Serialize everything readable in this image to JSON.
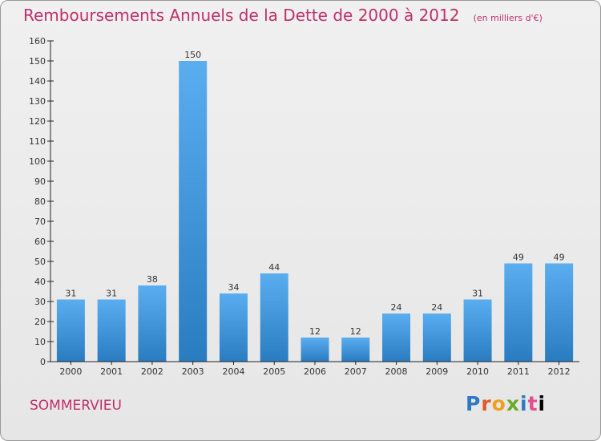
{
  "header": {
    "title": "Remboursements Annuels de la Dette de 2000 à 2012",
    "unit": "(en milliers d'€)"
  },
  "footer": {
    "commune": "SOMMERVIEU",
    "logo_letters": [
      "P",
      "r",
      "o",
      "x",
      "i",
      "t",
      "i"
    ]
  },
  "colors": {
    "bar_light": "#5aaef0",
    "bar_dark": "#2a7cc0",
    "title": "#c0306a",
    "axis": "#222222"
  },
  "chart_data": {
    "type": "bar",
    "title": "Remboursements Annuels de la Dette de 2000 à 2012",
    "xlabel": "",
    "ylabel": "",
    "categories": [
      "2000",
      "2001",
      "2002",
      "2003",
      "2004",
      "2005",
      "2006",
      "2007",
      "2008",
      "2009",
      "2010",
      "2011",
      "2012"
    ],
    "values": [
      31,
      31,
      38,
      150,
      34,
      44,
      12,
      12,
      24,
      24,
      31,
      49,
      49
    ],
    "ylim": [
      0,
      160
    ],
    "yticks": [
      0,
      10,
      20,
      30,
      40,
      50,
      60,
      70,
      80,
      90,
      100,
      110,
      120,
      130,
      140,
      150,
      160
    ],
    "grid": false,
    "legend": "none",
    "data_labels": true
  }
}
